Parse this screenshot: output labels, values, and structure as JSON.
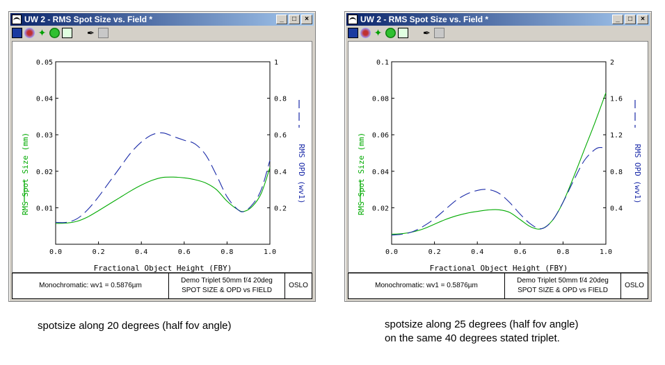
{
  "windows": [
    {
      "title": "UW 2 - RMS Spot Size vs. Field *",
      "toolbar_icons": [
        "spot-diagram-icon",
        "spot-grid-icon",
        "ray-fan-icon",
        "through-focus-icon",
        "field-curve-icon",
        "pointer-icon",
        "notes-icon"
      ],
      "footer": {
        "left": "Monochromatic: wv1 = 0.5876µm",
        "mid_line1": "Demo Triplet 50mm f/4 20deg",
        "mid_line2": "SPOT SIZE & OPD vs FIELD",
        "right": "OSLO"
      },
      "caption": "spotsize along 20 degrees (half fov angle)",
      "chart_data": {
        "type": "line",
        "xlabel": "Fractional Object Height (FBY)",
        "ylabel_left": "RMS Spot Size (mm)",
        "ylabel_right": "RMS OPD (wv1)",
        "xlim": [
          0,
          1
        ],
        "ylim_left": [
          0,
          0.05
        ],
        "ylim_right": [
          0,
          1
        ],
        "x_ticks": [
          "0.0",
          "0.2",
          "0.4",
          "0.6",
          "0.8",
          "1.0"
        ],
        "left_ticks": [
          "0.01",
          "0.02",
          "0.03",
          "0.04",
          "0.05"
        ],
        "right_ticks": [
          "0.2",
          "0.4",
          "0.6",
          "0.8",
          "1"
        ],
        "series": [
          {
            "name": "RMS Spot Size (mm)",
            "axis": "left",
            "color": "#00aa00",
            "dash": "solid",
            "x": [
              0,
              0.05,
              0.1,
              0.15,
              0.2,
              0.25,
              0.3,
              0.35,
              0.4,
              0.45,
              0.5,
              0.55,
              0.6,
              0.65,
              0.7,
              0.75,
              0.8,
              0.85,
              0.88,
              0.92,
              0.96,
              1.0
            ],
            "y": [
              0.0057,
              0.0058,
              0.0063,
              0.0075,
              0.0092,
              0.011,
              0.0128,
              0.0146,
              0.0162,
              0.0175,
              0.0183,
              0.0184,
              0.0182,
              0.0177,
              0.0168,
              0.015,
              0.0118,
              0.0095,
              0.009,
              0.0105,
              0.014,
              0.021
            ]
          },
          {
            "name": "RMS OPD (wv1)",
            "axis": "right",
            "color": "#1a2aa8",
            "dash": "long",
            "x": [
              0,
              0.05,
              0.1,
              0.15,
              0.2,
              0.25,
              0.3,
              0.35,
              0.4,
              0.45,
              0.5,
              0.55,
              0.6,
              0.65,
              0.7,
              0.75,
              0.8,
              0.85,
              0.88,
              0.92,
              0.96,
              1.0
            ],
            "y": [
              0.12,
              0.12,
              0.14,
              0.19,
              0.26,
              0.34,
              0.42,
              0.5,
              0.56,
              0.6,
              0.61,
              0.59,
              0.57,
              0.55,
              0.49,
              0.38,
              0.26,
              0.19,
              0.18,
              0.22,
              0.3,
              0.46
            ]
          }
        ]
      }
    },
    {
      "title": "UW 2 - RMS Spot Size vs. Field *",
      "toolbar_icons": [
        "spot-diagram-icon",
        "spot-grid-icon",
        "ray-fan-icon",
        "through-focus-icon",
        "field-curve-icon",
        "pointer-icon",
        "notes-icon"
      ],
      "footer": {
        "left": "Monochromatic: wv1 = 0.5876µm",
        "mid_line1": "Demo Triplet 50mm f/4 20deg",
        "mid_line2": "SPOT SIZE & OPD vs FIELD",
        "right": "OSLO"
      },
      "caption": "spotsize along 25 degrees (half fov angle)",
      "caption2": "on the same 40 degrees stated triplet.",
      "chart_data": {
        "type": "line",
        "xlabel": "Fractional Object Height (FBY)",
        "ylabel_left": "RMS Spot Size (mm)",
        "ylabel_right": "RMS OPD (wv1)",
        "xlim": [
          0,
          1
        ],
        "ylim_left": [
          0,
          0.1
        ],
        "ylim_right": [
          0,
          2
        ],
        "x_ticks": [
          "0.0",
          "0.2",
          "0.4",
          "0.6",
          "0.8",
          "1.0"
        ],
        "left_ticks": [
          "0.02",
          "0.04",
          "0.06",
          "0.08",
          "0.1"
        ],
        "right_ticks": [
          "0.4",
          "0.8",
          "1.2",
          "1.6",
          "2"
        ],
        "series": [
          {
            "name": "RMS Spot Size (mm)",
            "axis": "left",
            "color": "#00aa00",
            "dash": "solid",
            "x": [
              0,
              0.05,
              0.1,
              0.15,
              0.2,
              0.25,
              0.3,
              0.35,
              0.4,
              0.45,
              0.5,
              0.55,
              0.6,
              0.65,
              0.7,
              0.75,
              0.8,
              0.85,
              0.9,
              0.95,
              1.0
            ],
            "y": [
              0.0055,
              0.0058,
              0.0068,
              0.0085,
              0.011,
              0.0135,
              0.0155,
              0.017,
              0.018,
              0.0188,
              0.0189,
              0.0175,
              0.0135,
              0.0095,
              0.0085,
              0.013,
              0.023,
              0.037,
              0.052,
              0.067,
              0.083
            ]
          },
          {
            "name": "RMS OPD (wv1)",
            "axis": "right",
            "color": "#1a2aa8",
            "dash": "long",
            "x": [
              0,
              0.05,
              0.1,
              0.15,
              0.2,
              0.25,
              0.3,
              0.35,
              0.4,
              0.45,
              0.5,
              0.55,
              0.6,
              0.65,
              0.7,
              0.75,
              0.8,
              0.85,
              0.9,
              0.95,
              0.98,
              1.0
            ],
            "y": [
              0.1,
              0.11,
              0.14,
              0.2,
              0.28,
              0.38,
              0.48,
              0.55,
              0.59,
              0.6,
              0.56,
              0.46,
              0.33,
              0.22,
              0.17,
              0.26,
              0.46,
              0.7,
              0.92,
              1.04,
              1.06,
              1.03
            ]
          }
        ]
      }
    }
  ]
}
